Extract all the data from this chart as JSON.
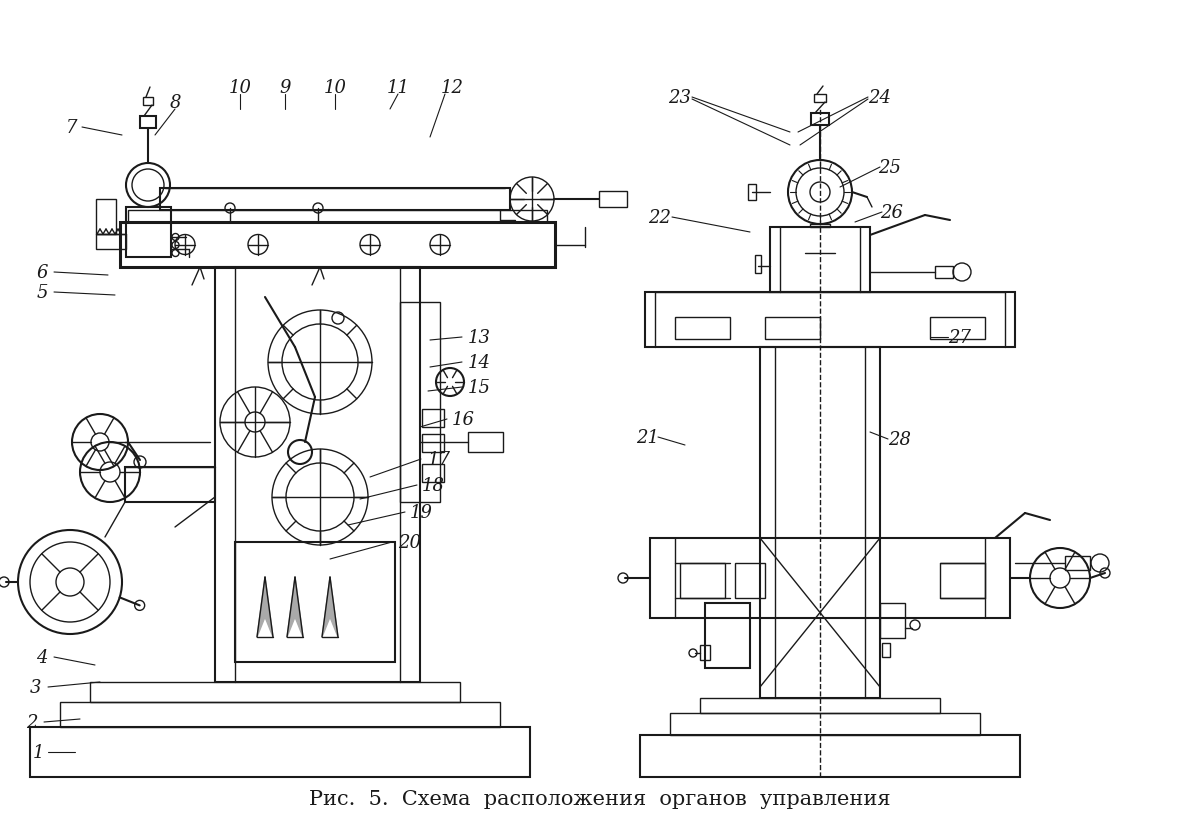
{
  "caption": "Рис.  5.  Схема  расположения  органов  управления",
  "bg_color": "#ffffff",
  "line_color": "#1a1a1a",
  "caption_fontsize": 15,
  "label_fontsize": 13
}
